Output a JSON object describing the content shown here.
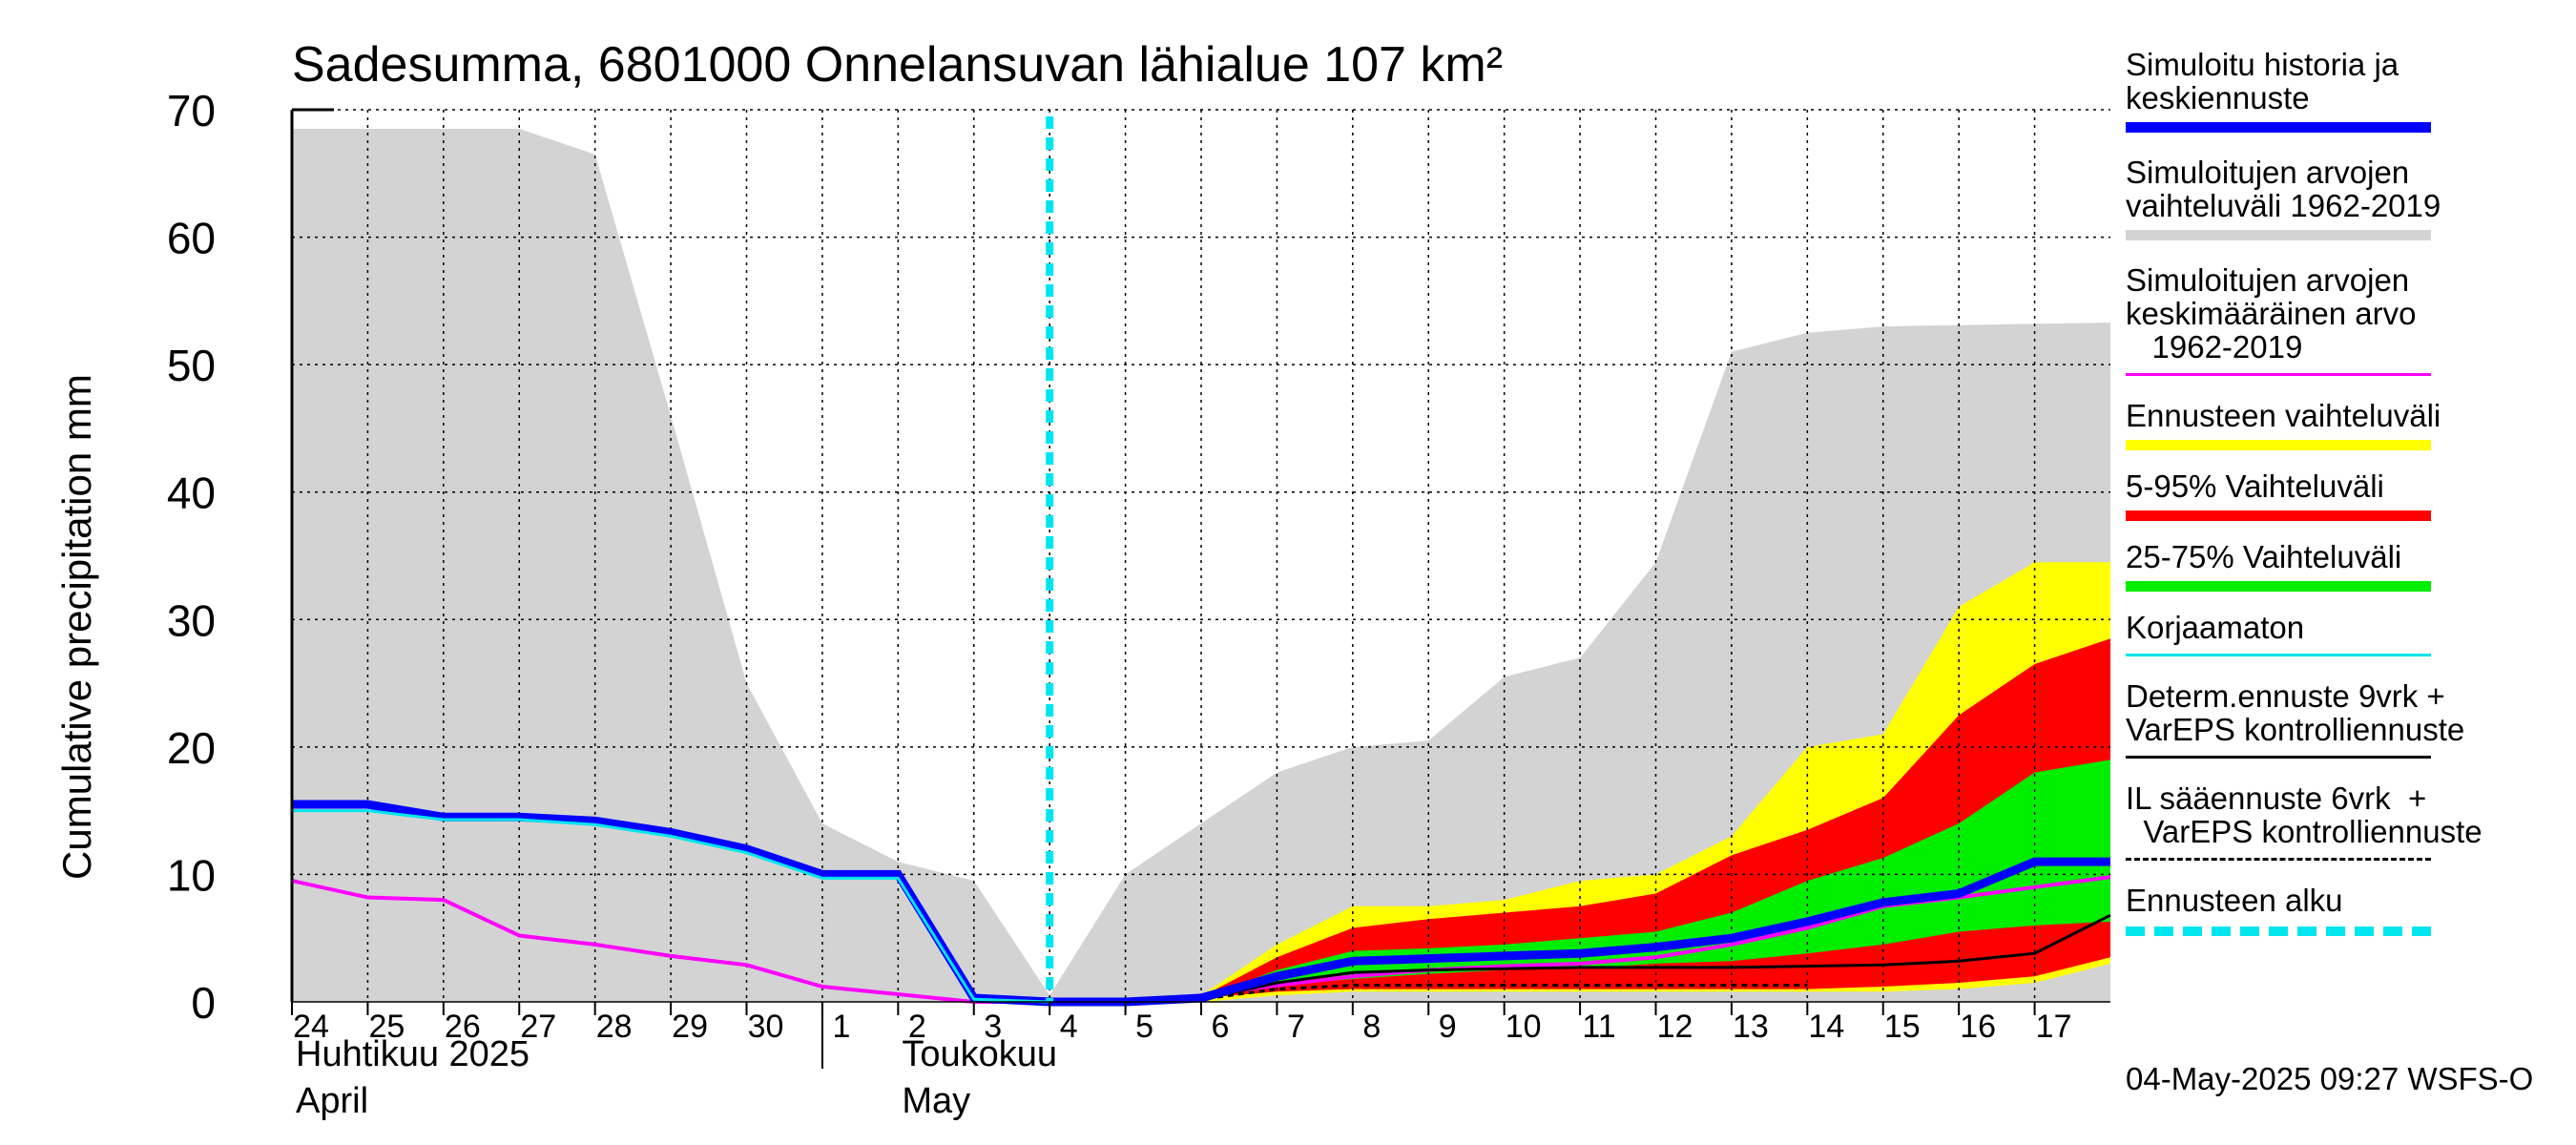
{
  "chart_data": {
    "type": "area",
    "title": "Sadesumma, 6801000 Onnelansuvan lähialue 107 km²",
    "ylabel": "Cumulative precipitation   mm",
    "ylim": [
      0,
      70
    ],
    "yticks": [
      0,
      10,
      20,
      30,
      40,
      50,
      60,
      70
    ],
    "xrange": [
      0,
      24
    ],
    "x_tick_labels": [
      "24",
      "25",
      "26",
      "27",
      "28",
      "29",
      "30",
      "1",
      "2",
      "3",
      "4",
      "5",
      "6",
      "7",
      "8",
      "9",
      "10",
      "11",
      "12",
      "13",
      "14",
      "15",
      "16",
      "17"
    ],
    "month_labels": [
      {
        "fi": "Huhtikuu  2025",
        "en": "April",
        "at": 0
      },
      {
        "fi": "Toukokuu",
        "en": "May",
        "at": 8
      }
    ],
    "month_divider_at": 7,
    "forecast_start_at": 10,
    "history_range": {
      "x": [
        0,
        1,
        2,
        3,
        4,
        5,
        6,
        7,
        8,
        9,
        10,
        11,
        12,
        13,
        14,
        15,
        16,
        17,
        18,
        19,
        20,
        21,
        22,
        23,
        24
      ],
      "upper": [
        68.5,
        68.5,
        68.5,
        68.5,
        66.5,
        46,
        25,
        14,
        11,
        9.5,
        0.5,
        10,
        14,
        18,
        20,
        20.5,
        25.5,
        27,
        34.5,
        51,
        52.5,
        53,
        53.1,
        53.2,
        53.3
      ]
    },
    "mean_1962_2019": {
      "x": [
        0,
        1,
        2,
        3,
        4,
        5,
        6,
        7,
        8,
        9,
        10,
        11,
        12,
        13,
        14,
        15,
        16,
        17,
        18,
        19,
        20,
        21,
        22,
        23,
        24
      ],
      "y": [
        9.5,
        8.2,
        8,
        5.2,
        4.5,
        3.6,
        2.9,
        1.2,
        0.6,
        0,
        0,
        0,
        0.5,
        1.3,
        2,
        2.5,
        2.8,
        3,
        3.5,
        4.5,
        5.8,
        7.5,
        8.2,
        9,
        9.8
      ]
    },
    "simulated_history": {
      "x": [
        0,
        1,
        2,
        3,
        4,
        5,
        6,
        7,
        8,
        9,
        10,
        11,
        12,
        13,
        14,
        15,
        16,
        17,
        18,
        19,
        20,
        21,
        22,
        23,
        24
      ],
      "y": [
        15.5,
        15.5,
        14.5,
        14.5,
        14.2,
        13.3,
        12,
        10,
        10,
        0.3,
        0,
        0,
        0.3,
        2,
        3.2,
        3.4,
        3.6,
        3.8,
        4.3,
        5,
        6.3,
        7.8,
        8.5,
        11,
        11
      ]
    },
    "uncorrected": {
      "x": [
        0,
        1,
        2,
        3,
        4,
        5,
        6,
        7,
        8,
        9,
        10
      ],
      "y": [
        15,
        15,
        14.3,
        14.3,
        13.9,
        13,
        11.7,
        9.7,
        9.7,
        0.2,
        0
      ]
    },
    "forecast_x": [
      10,
      11,
      12,
      13,
      14,
      15,
      16,
      17,
      18,
      19,
      20,
      21,
      22,
      23,
      24
    ],
    "forecast_range": {
      "lower": [
        0,
        0,
        0,
        0.5,
        0.8,
        0.8,
        0.8,
        0.8,
        0.8,
        0.8,
        0.8,
        0.8,
        1,
        1.5,
        3
      ],
      "upper": [
        0,
        0,
        0.5,
        4.5,
        7.5,
        7.5,
        8,
        9.5,
        10,
        13,
        20,
        21,
        31,
        34.5,
        34.5
      ]
    },
    "p5_95": {
      "lower": [
        0,
        0,
        0.3,
        0.8,
        1,
        1,
        1,
        1,
        1,
        1,
        1,
        1.2,
        1.5,
        2,
        3.5
      ],
      "upper": [
        0,
        0,
        0.4,
        3.5,
        5.8,
        6.5,
        7,
        7.5,
        8.5,
        11.5,
        13.5,
        16,
        22.5,
        26.5,
        28.5
      ]
    },
    "p25_75": {
      "lower": [
        0,
        0,
        0.3,
        1.3,
        1.8,
        2.2,
        2.5,
        2.6,
        3,
        3.2,
        3.8,
        4.5,
        5.5,
        6,
        6.3
      ],
      "upper": [
        0,
        0,
        0.3,
        2.5,
        4,
        4.2,
        4.5,
        5,
        5.5,
        7,
        9.5,
        11.3,
        14,
        18,
        19
      ]
    },
    "deterministic": {
      "x": [
        10,
        11,
        12,
        13,
        14,
        15,
        16,
        17,
        18,
        19,
        20,
        21,
        22,
        23,
        24
      ],
      "y": [
        0,
        0,
        0.2,
        1.5,
        2.3,
        2.5,
        2.6,
        2.7,
        2.7,
        2.7,
        2.8,
        2.9,
        3.2,
        3.8,
        6.8
      ]
    },
    "il_forecast": {
      "x": [
        10,
        11,
        12,
        13,
        14,
        15,
        16,
        17,
        18,
        19,
        20
      ],
      "y": [
        0,
        0,
        0.2,
        1,
        1.3,
        1.3,
        1.3,
        1.3,
        1.3,
        1.3,
        1.3
      ]
    },
    "colors": {
      "history_range": "#d3d3d3",
      "mean": "#ff00ff",
      "simulated": "#0000ff",
      "uncorrected": "#00e5ee",
      "forecast_range": "#ffff00",
      "p5_95": "#ff0000",
      "p25_75": "#00ee00",
      "deterministic": "#000000",
      "forecast_start": "#00e5ee"
    }
  },
  "legend": [
    {
      "text": "Simuloitu historia ja\nkeskiennuste",
      "kind": "swatch",
      "color": "#0000ff"
    },
    {
      "text": "Simuloitujen arvojen\nvaihteluväli 1962-2019",
      "kind": "swatch",
      "color": "#d3d3d3"
    },
    {
      "text": "Simuloitujen arvojen\nkeskimääräinen arvo\n   1962-2019",
      "kind": "line",
      "color": "#ff00ff"
    },
    {
      "text": "Ennusteen vaihteluväli",
      "kind": "swatch",
      "color": "#ffff00"
    },
    {
      "text": "5-95% Vaihteluväli",
      "kind": "swatch",
      "color": "#ff0000"
    },
    {
      "text": "25-75% Vaihteluväli",
      "kind": "swatch",
      "color": "#00ee00"
    },
    {
      "text": "Korjaamaton",
      "kind": "line",
      "color": "#00e5ee"
    },
    {
      "text": "Determ.ennuste 9vrk +\nVarEPS kontrolliennuste",
      "kind": "line",
      "color": "#000000"
    },
    {
      "text": "IL sääennuste 6vrk  +\n  VarEPS kontrolliennuste",
      "kind": "dash",
      "color": "#000000"
    },
    {
      "text": "Ennusteen alku",
      "kind": "dotcyan",
      "color": "#00e5ee"
    }
  ],
  "footer": "04-May-2025 09:27 WSFS-O"
}
